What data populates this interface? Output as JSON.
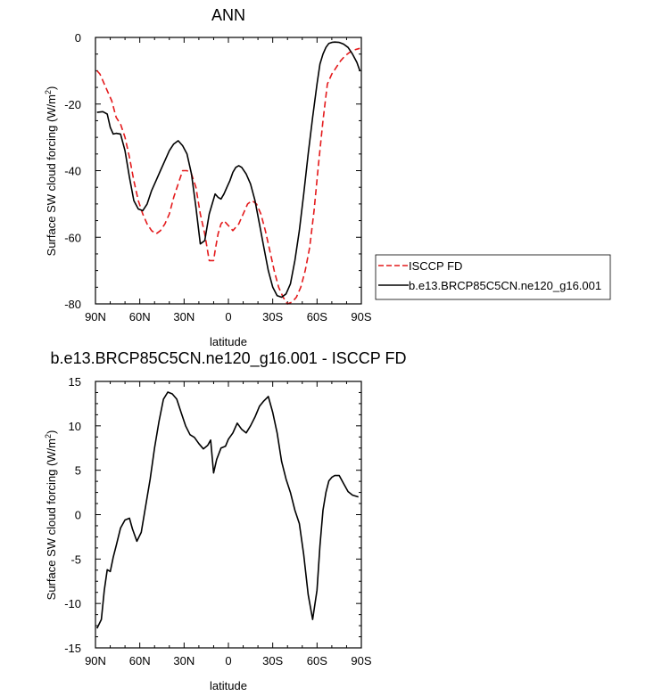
{
  "chart_data": [
    {
      "type": "line",
      "title": "ANN",
      "xlabel": "latitude",
      "ylabel_main": "Surface SW cloud forcing (W/m",
      "ylabel_sup": "2",
      "ylabel_end": ")",
      "xlim": [
        90,
        -90
      ],
      "ylim": [
        -80,
        0
      ],
      "xticks": [
        90,
        60,
        30,
        0,
        -30,
        -60,
        -90
      ],
      "xtick_labels": [
        "90N",
        "60N",
        "30N",
        "0",
        "30S",
        "60S",
        "90S"
      ],
      "yticks": [
        0,
        -20,
        -40,
        -60,
        -80
      ],
      "ytick_labels": [
        "0",
        "-20",
        "-40",
        "-60",
        "-80"
      ],
      "legend_position": "right",
      "series": [
        {
          "name": "ISCCP FD",
          "color": "#e41a1c",
          "dash": "dashed",
          "x": [
            89,
            87,
            85,
            82,
            79,
            76,
            73,
            70,
            67,
            64,
            61,
            58,
            55,
            52,
            49,
            46,
            43,
            40,
            37,
            34,
            31,
            28,
            25,
            22,
            19,
            16,
            13,
            10,
            9,
            7,
            5,
            3,
            1,
            -1,
            -3,
            -5,
            -7,
            -9,
            -11,
            -13,
            -16,
            -19,
            -22,
            -25,
            -28,
            -31,
            -34,
            -37,
            -40,
            -43,
            -46,
            -49,
            -52,
            -55,
            -58,
            -61,
            -64,
            -67,
            -70,
            -73,
            -76,
            -79,
            -82,
            -85,
            -88,
            -89
          ],
          "y": [
            -10,
            -11,
            -13,
            -16,
            -19,
            -24,
            -26,
            -30,
            -36,
            -43,
            -49,
            -53,
            -56,
            -58,
            -59,
            -58,
            -56,
            -53,
            -48,
            -44,
            -40,
            -40,
            -41,
            -45,
            -53,
            -59,
            -67,
            -67,
            -64,
            -59,
            -56,
            -55,
            -56,
            -57,
            -58,
            -57,
            -56,
            -54,
            -52,
            -50,
            -49,
            -50,
            -53,
            -58,
            -64,
            -70,
            -75,
            -78,
            -80,
            -79.5,
            -78,
            -75,
            -70,
            -63,
            -52,
            -38,
            -25,
            -14,
            -11,
            -9,
            -7,
            -5.5,
            -4.5,
            -3.8,
            -3.4,
            -3.3
          ]
        },
        {
          "name": "b.e13.BRCP85C5CN.ne120_g16.001",
          "color": "#000000",
          "dash": "solid",
          "x": [
            89,
            85,
            82,
            80,
            78,
            76,
            73,
            70,
            67,
            64,
            61,
            58,
            55,
            52,
            49,
            46,
            43,
            40,
            37,
            34,
            31,
            28,
            25,
            22,
            19,
            16,
            13,
            11,
            9,
            7,
            5,
            3,
            1,
            -1,
            -3,
            -5,
            -7,
            -9,
            -12,
            -15,
            -18,
            -21,
            -24,
            -27,
            -30,
            -33,
            -36,
            -39,
            -42,
            -45,
            -48,
            -51,
            -54,
            -57,
            -60,
            -62,
            -64,
            -66,
            -68,
            -70,
            -72,
            -75,
            -78,
            -81,
            -84,
            -87,
            -89
          ],
          "y": [
            -22.5,
            -22.3,
            -23,
            -27,
            -29,
            -28.8,
            -29,
            -34,
            -42,
            -49,
            -51.5,
            -52,
            -50,
            -46,
            -43,
            -40,
            -37,
            -34,
            -32,
            -31,
            -32.5,
            -35,
            -41,
            -51,
            -62,
            -61,
            -53,
            -50,
            -47,
            -48,
            -48.5,
            -47,
            -45,
            -43,
            -40.5,
            -39,
            -38.5,
            -39,
            -41,
            -44,
            -49,
            -56,
            -63,
            -70,
            -75,
            -77.5,
            -78,
            -77,
            -74,
            -67,
            -58,
            -47,
            -35,
            -24,
            -14,
            -8,
            -5,
            -3,
            -1.8,
            -1.5,
            -1.4,
            -1.5,
            -2,
            -3,
            -5,
            -7.5,
            -10
          ]
        }
      ]
    },
    {
      "type": "line",
      "title": "b.e13.BRCP85C5CN.ne120_g16.001 - ISCCP FD",
      "xlabel": "latitude",
      "ylabel_main": "Surface SW cloud forcing (W/m",
      "ylabel_sup": "2",
      "ylabel_end": ")",
      "xlim": [
        90,
        -90
      ],
      "ylim": [
        -15,
        15
      ],
      "xticks": [
        90,
        60,
        30,
        0,
        -30,
        -60,
        -90
      ],
      "xtick_labels": [
        "90N",
        "60N",
        "30N",
        "0",
        "30S",
        "60S",
        "90S"
      ],
      "yticks": [
        15,
        10,
        5,
        0,
        -5,
        -10,
        -15
      ],
      "ytick_labels": [
        "15",
        "10",
        "5",
        "0",
        "-5",
        "-10",
        "-15"
      ],
      "series": [
        {
          "color": "#000000",
          "dash": "solid",
          "x": [
            89,
            86,
            84,
            82,
            80,
            78,
            76,
            73,
            70,
            67,
            65,
            62,
            59,
            56,
            53,
            50,
            47,
            44,
            41,
            38,
            35,
            32,
            29,
            26,
            23,
            20,
            17,
            14,
            12,
            10,
            8,
            5,
            2,
            0,
            -3,
            -6,
            -9,
            -12,
            -15,
            -18,
            -21,
            -24,
            -27,
            -30,
            -33,
            -36,
            -39,
            -42,
            -45,
            -48,
            -51,
            -54,
            -57,
            -60,
            -62,
            -64,
            -66,
            -68,
            -70,
            -72,
            -75,
            -78,
            -81,
            -84,
            -86,
            -88
          ],
          "y": [
            -12.8,
            -11.8,
            -8.5,
            -6.2,
            -6.4,
            -4.8,
            -3.5,
            -1.5,
            -0.6,
            -0.4,
            -1.6,
            -3,
            -2,
            1,
            4,
            7.5,
            10.5,
            13,
            13.8,
            13.6,
            13,
            11.5,
            10,
            9,
            8.7,
            8,
            7.4,
            7.8,
            8.4,
            4.7,
            6.2,
            7.5,
            7.7,
            8.5,
            9.2,
            10.3,
            9.6,
            9.2,
            10,
            11,
            12.2,
            12.8,
            13.3,
            11.5,
            9.2,
            6,
            4,
            2.5,
            0.5,
            -1,
            -4.5,
            -9,
            -11.8,
            -8.5,
            -3.5,
            0.5,
            2.5,
            3.8,
            4.2,
            4.4,
            4.4,
            3.5,
            2.6,
            2.2,
            2.1,
            2
          ]
        }
      ]
    }
  ]
}
